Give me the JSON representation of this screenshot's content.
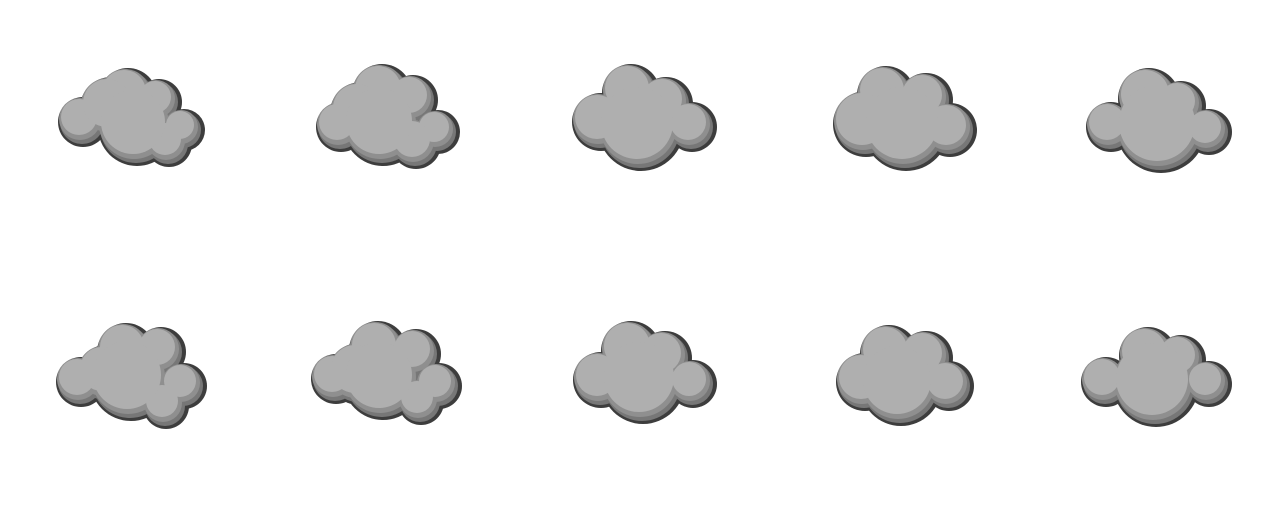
{
  "sheet": {
    "background": "#ffffff",
    "columns": 5,
    "rows": 2
  },
  "palette": {
    "outline": "#3d3d3d",
    "shade": "#777777",
    "mid": "#8f8f8f",
    "face": "#afafaf"
  },
  "frames": [
    {
      "name": "cloud-puff-frame-1",
      "icon": "cloud-icon"
    },
    {
      "name": "cloud-puff-frame-2",
      "icon": "cloud-icon"
    },
    {
      "name": "cloud-puff-frame-3",
      "icon": "cloud-icon"
    },
    {
      "name": "cloud-puff-frame-4",
      "icon": "cloud-icon"
    },
    {
      "name": "cloud-puff-frame-5",
      "icon": "cloud-icon"
    },
    {
      "name": "cloud-puff-frame-6",
      "icon": "cloud-icon"
    },
    {
      "name": "cloud-puff-frame-7",
      "icon": "cloud-icon"
    },
    {
      "name": "cloud-puff-frame-8",
      "icon": "cloud-icon"
    },
    {
      "name": "cloud-puff-frame-9",
      "icon": "cloud-icon"
    },
    {
      "name": "cloud-puff-frame-10",
      "icon": "cloud-icon"
    }
  ]
}
